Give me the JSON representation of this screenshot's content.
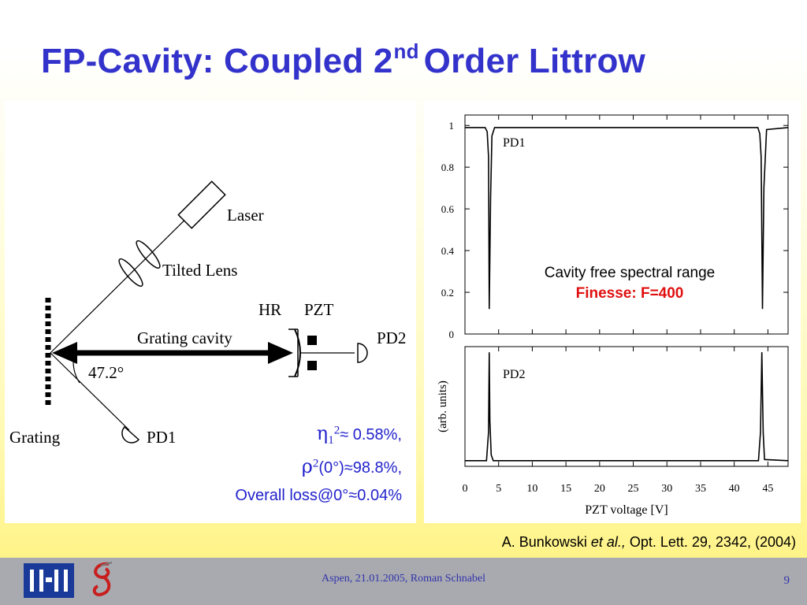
{
  "slide": {
    "title_main": "FP-Cavity: Coupled 2",
    "title_sup": "nd",
    "title_end": "Order Littrow",
    "page_number": "9"
  },
  "diagram": {
    "labels": {
      "laser": "Laser",
      "tilted_lens": "Tilted Lens",
      "hr": "HR",
      "pzt": "PZT",
      "grating_cavity": "Grating cavity",
      "pd2": "PD2",
      "angle": "47.2°",
      "grating": "Grating",
      "pd1": "PD1"
    }
  },
  "equations": {
    "eta_symbol": "η",
    "eta_sub": "1",
    "eta_sup": "2",
    "eta_value": "≈ 0.58%,",
    "rho_symbol": "ρ",
    "rho_sup": "2",
    "rho_value": "(0°)≈98.8%,",
    "loss": "Overall loss@0°≈0.04%"
  },
  "caption": {
    "line1": "Cavity free spectral range",
    "line2": "Finesse: F=400",
    "line2_color": "#e01010"
  },
  "citation": {
    "author": "A. Bunkowski ",
    "etal": "et al.,",
    "rest": " Opt. Lett. 29, 2342, (2004)"
  },
  "footer": {
    "text": "Aspen, 21.01.2005,  Roman Schnabel"
  },
  "chart_data": [
    {
      "type": "line",
      "panel_label": "PD1",
      "ylabel": "",
      "xlim": [
        0,
        48
      ],
      "ylim": [
        0,
        1.05
      ],
      "y_ticks": [
        "0",
        "0.2",
        "0.4",
        "0.6",
        "0.8",
        "1"
      ],
      "series": [
        {
          "x": [
            0,
            3.0,
            3.3,
            3.5,
            3.6,
            3.8,
            4.0,
            4.4,
            43.5,
            43.8,
            44.0,
            44.2,
            44.4,
            44.8,
            48
          ],
          "values": [
            0.99,
            0.99,
            0.97,
            0.85,
            0.12,
            0.65,
            0.95,
            0.99,
            0.99,
            0.96,
            0.85,
            0.12,
            0.7,
            0.98,
            0.99
          ]
        }
      ]
    },
    {
      "type": "line",
      "panel_label": "PD2",
      "ylabel": "(arb. units)",
      "xlabel": "PZT voltage [V]",
      "xlim": [
        0,
        48
      ],
      "x_ticks": [
        "0",
        "5",
        "10",
        "15",
        "20",
        "25",
        "30",
        "35",
        "40",
        "45"
      ],
      "series": [
        {
          "x": [
            0,
            3.2,
            3.5,
            3.6,
            3.7,
            3.9,
            4.2,
            43.6,
            43.9,
            44.1,
            44.3,
            44.5,
            48
          ],
          "values": [
            0.05,
            0.05,
            0.3,
            1.0,
            0.4,
            0.1,
            0.05,
            0.05,
            0.3,
            1.0,
            0.3,
            0.06,
            0.05
          ]
        }
      ]
    }
  ]
}
